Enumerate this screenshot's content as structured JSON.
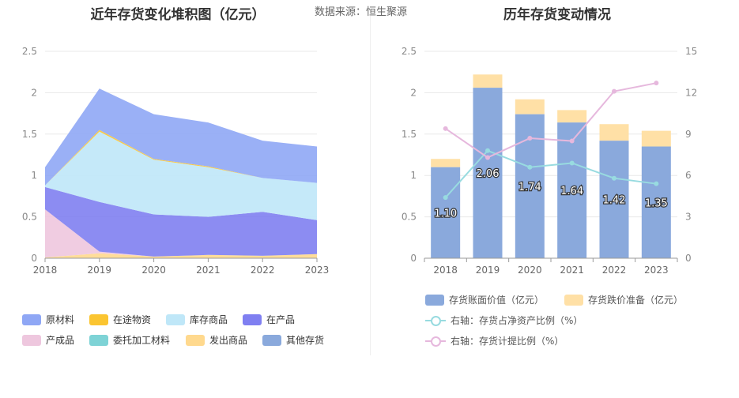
{
  "left_chart": {
    "title": "近年存货变化堆积图（亿元）"
  },
  "source": "数据来源：恒生聚源",
  "right_chart": {
    "title": "历年存货变动情况"
  },
  "chart_data": [
    {
      "type": "area",
      "title": "近年存货变化堆积图（亿元）",
      "stacked": true,
      "x": [
        "2018",
        "2019",
        "2020",
        "2021",
        "2022",
        "2023"
      ],
      "ylim": [
        0,
        2.5
      ],
      "yticks": [
        "0",
        "0.5",
        "1",
        "1.5",
        "2",
        "2.5"
      ],
      "grid": true,
      "legend_position": "bottom",
      "series": [
        {
          "name": "原材料",
          "color": "#8fa7f5",
          "values": [
            0.22,
            0.5,
            0.54,
            0.53,
            0.45,
            0.44
          ]
        },
        {
          "name": "在途物资",
          "color": "#fbc531",
          "values": [
            0.0,
            0.02,
            0.01,
            0.01,
            0.0,
            0.0
          ]
        },
        {
          "name": "库存商品",
          "color": "#bfe7f8",
          "values": [
            0.02,
            0.85,
            0.66,
            0.6,
            0.41,
            0.45
          ]
        },
        {
          "name": "在产品",
          "color": "#7f7ff1",
          "values": [
            0.27,
            0.6,
            0.51,
            0.46,
            0.53,
            0.41
          ]
        },
        {
          "name": "产成品",
          "color": "#eec7de",
          "values": [
            0.58,
            0.02,
            0.0,
            0.0,
            0.0,
            0.0
          ]
        },
        {
          "name": "委托加工材料",
          "color": "#7ed3d6",
          "values": [
            0.0,
            0.0,
            0.0,
            0.0,
            0.0,
            0.0
          ]
        },
        {
          "name": "发出商品",
          "color": "#ffd98e",
          "values": [
            0.01,
            0.06,
            0.02,
            0.04,
            0.03,
            0.05
          ]
        },
        {
          "name": "其他存货",
          "color": "#8aa9dc",
          "values": [
            0.0,
            0.0,
            0.0,
            0.0,
            0.0,
            0.0
          ]
        }
      ]
    },
    {
      "type": "bar",
      "title": "历年存货变动情况",
      "categories": [
        "2018",
        "2019",
        "2020",
        "2021",
        "2022",
        "2023"
      ],
      "ylim": [
        0,
        2.5
      ],
      "y2lim": [
        0,
        15
      ],
      "yticks": [
        "0",
        "0.5",
        "1",
        "1.5",
        "2",
        "2.5"
      ],
      "y2ticks": [
        "0",
        "3",
        "6",
        "9",
        "12",
        "15"
      ],
      "grid": true,
      "legend_position": "bottom",
      "series": [
        {
          "name": "存货账面价值（亿元）",
          "kind": "bar",
          "color": "#8aa9dc",
          "values": [
            1.1,
            2.06,
            1.74,
            1.64,
            1.42,
            1.35
          ],
          "labels": [
            "1.10",
            "2.06",
            "1.74",
            "1.64",
            "1.42",
            "1.35"
          ]
        },
        {
          "name": "存货跌价准备（亿元）",
          "kind": "bar",
          "color": "#ffe0a6",
          "values": [
            0.1,
            0.16,
            0.18,
            0.15,
            0.2,
            0.19
          ]
        },
        {
          "name": "右轴：存货占净资产比例（%）",
          "kind": "line",
          "axis": "right",
          "color": "#98dbe0",
          "values": [
            4.4,
            7.8,
            6.6,
            6.9,
            5.8,
            5.4
          ]
        },
        {
          "name": "右轴：存货计提比例（%）",
          "kind": "line",
          "axis": "right",
          "color": "#e6b8dd",
          "values": [
            9.4,
            7.3,
            8.7,
            8.5,
            12.1,
            12.7
          ]
        }
      ]
    }
  ]
}
